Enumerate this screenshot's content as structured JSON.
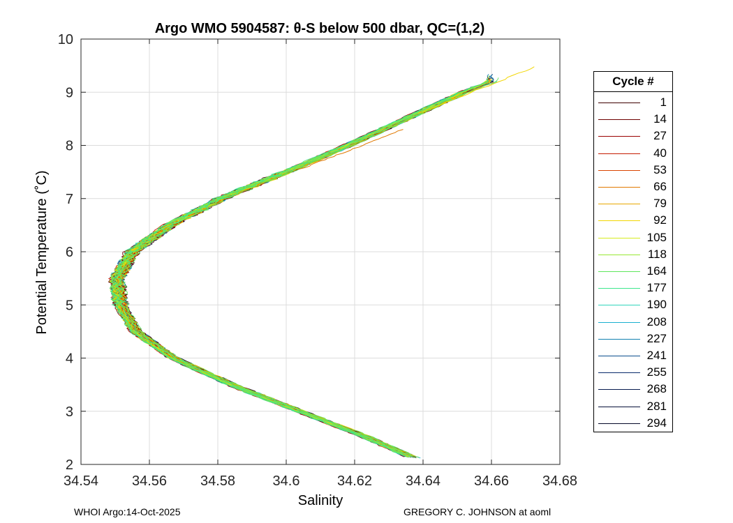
{
  "chart_data": {
    "type": "line",
    "title": "Argo WMO 5904587: θ-S below 500 dbar,  QC=(1,2)",
    "xlabel": "Salinity",
    "ylabel": "Potential Temperature (˚C)",
    "xlim": [
      34.54,
      34.68
    ],
    "ylim": [
      2,
      10
    ],
    "xticks": [
      "34.54",
      "34.56",
      "34.58",
      "34.6",
      "34.62",
      "34.64",
      "34.66",
      "34.68"
    ],
    "yticks": [
      "2",
      "3",
      "4",
      "5",
      "6",
      "7",
      "8",
      "9",
      "10"
    ],
    "grid": true,
    "legend_title": "Cycle #",
    "legend_position": "right",
    "series": [
      {
        "name": "1",
        "color": "#3d0000"
      },
      {
        "name": "14",
        "color": "#6e0000"
      },
      {
        "name": "27",
        "color": "#9a0000"
      },
      {
        "name": "40",
        "color": "#c41a00"
      },
      {
        "name": "53",
        "color": "#d94400"
      },
      {
        "name": "66",
        "color": "#e07800"
      },
      {
        "name": "79",
        "color": "#e8a800"
      },
      {
        "name": "92",
        "color": "#f2d600"
      },
      {
        "name": "105",
        "color": "#d6ec1c"
      },
      {
        "name": "118",
        "color": "#96e832"
      },
      {
        "name": "164",
        "color": "#5ee65a"
      },
      {
        "name": "177",
        "color": "#3ce68c"
      },
      {
        "name": "190",
        "color": "#30d4bc"
      },
      {
        "name": "208",
        "color": "#1ab0d0"
      },
      {
        "name": "227",
        "color": "#1080b0"
      },
      {
        "name": "241",
        "color": "#0a4c8c"
      },
      {
        "name": "255",
        "color": "#082a6a"
      },
      {
        "name": "268",
        "color": "#061a4e"
      },
      {
        "name": "281",
        "color": "#050f38"
      },
      {
        "name": "294",
        "color": "#040828"
      }
    ],
    "profile_curve": {
      "theta": [
        2.1,
        2.5,
        3.0,
        3.5,
        4.0,
        4.5,
        5.0,
        5.5,
        6.0,
        6.5,
        7.0,
        7.5,
        8.0,
        8.5,
        9.0,
        9.2
      ],
      "salinity": [
        34.638,
        34.624,
        34.604,
        34.584,
        34.567,
        34.556,
        34.5515,
        34.5505,
        34.555,
        34.566,
        34.581,
        34.6,
        34.618,
        34.635,
        34.652,
        34.66
      ]
    },
    "profile_tips": [
      {
        "theta": 9.48,
        "salinity": 34.673
      },
      {
        "theta": 8.32,
        "salinity": 34.635
      }
    ]
  },
  "footer": {
    "left": "WHOI Argo:14-Oct-2025",
    "right": "GREGORY C. JOHNSON at aoml"
  }
}
